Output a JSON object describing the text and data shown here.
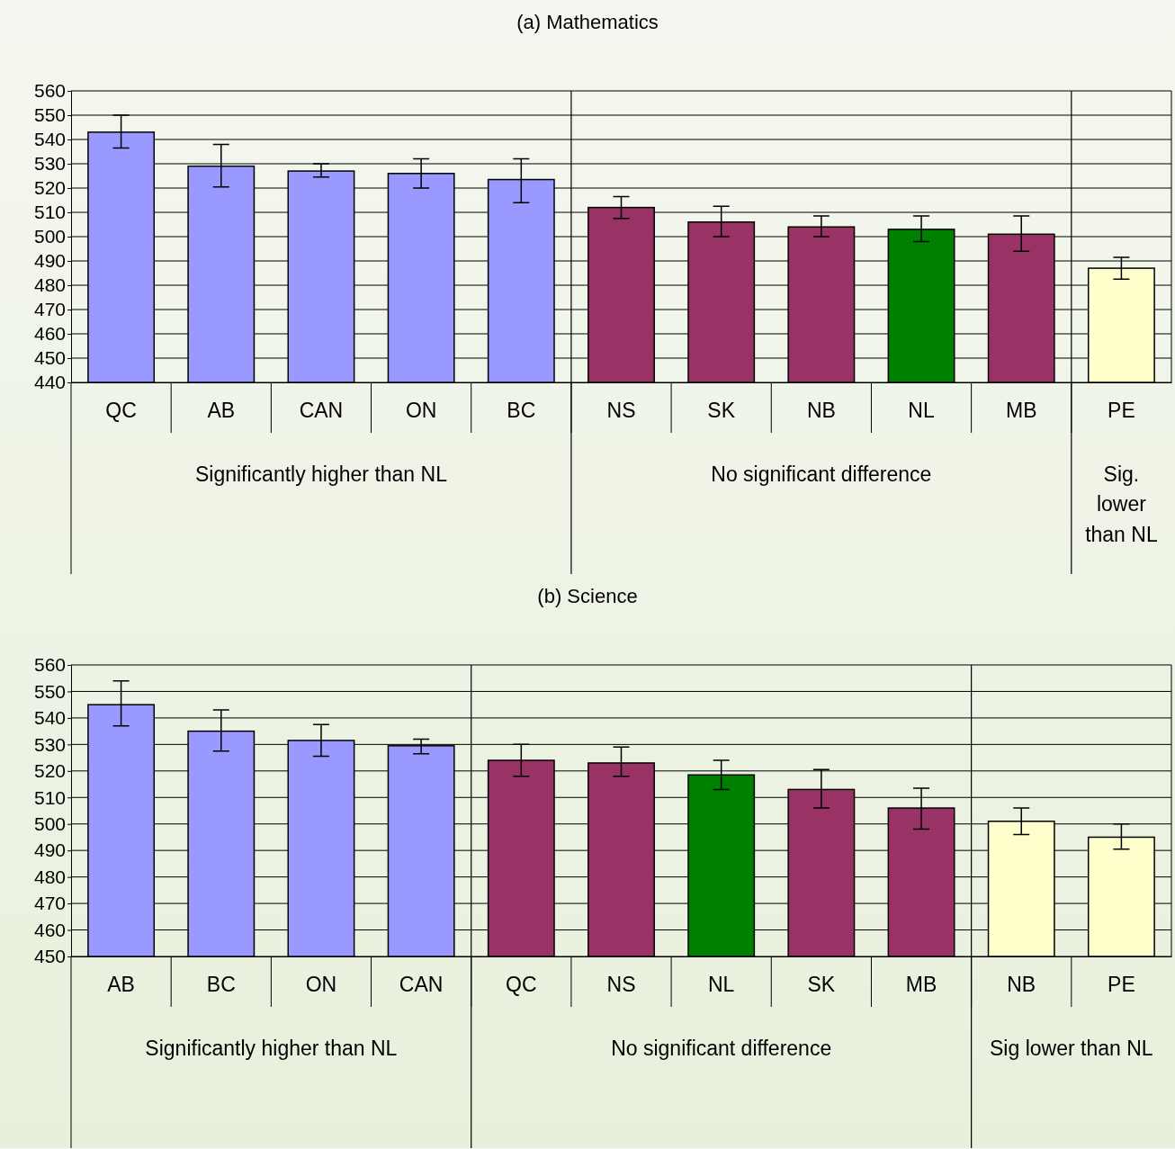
{
  "chart_data": [
    {
      "type": "bar",
      "title": "(a) Mathematics",
      "categories": [
        "QC",
        "AB",
        "CAN",
        "ON",
        "BC",
        "NS",
        "SK",
        "NB",
        "NL",
        "MB",
        "PE"
      ],
      "values": [
        543,
        529,
        527,
        526,
        523.5,
        512,
        506,
        504,
        503,
        501,
        487
      ],
      "colors": [
        "#9999ff",
        "#9999ff",
        "#9999ff",
        "#9999ff",
        "#9999ff",
        "#993366",
        "#993366",
        "#993366",
        "#008000",
        "#993366",
        "#ffffcc"
      ],
      "errors": [
        [
          536.5,
          550
        ],
        [
          520.5,
          538
        ],
        [
          524.5,
          530
        ],
        [
          520,
          532
        ],
        [
          514,
          532
        ],
        [
          507.5,
          516.5
        ],
        [
          500,
          512.5
        ],
        [
          500,
          508.5
        ],
        [
          498,
          508.5
        ],
        [
          494,
          508.5
        ],
        [
          482.5,
          491.5
        ]
      ],
      "ylim": [
        440,
        560
      ],
      "yticks": [
        440,
        450,
        460,
        470,
        480,
        490,
        500,
        510,
        520,
        530,
        540,
        550,
        560
      ],
      "grid": "y",
      "annotations": [
        "Significantly higher than NL",
        "No significant difference",
        "Sig. lower than NL"
      ]
    },
    {
      "type": "bar",
      "title": "(b) Science",
      "categories": [
        "AB",
        "BC",
        "ON",
        "CAN",
        "QC",
        "NS",
        "NL",
        "SK",
        "MB",
        "NB",
        "PE"
      ],
      "values": [
        545,
        535,
        531.5,
        529.5,
        524,
        523,
        518.5,
        513,
        506,
        501,
        495
      ],
      "colors": [
        "#9999ff",
        "#9999ff",
        "#9999ff",
        "#9999ff",
        "#993366",
        "#993366",
        "#008000",
        "#993366",
        "#993366",
        "#ffffcc",
        "#ffffcc"
      ],
      "errors": [
        [
          537,
          554
        ],
        [
          527.5,
          543
        ],
        [
          525.5,
          537.5
        ],
        [
          526.5,
          532
        ],
        [
          518,
          530
        ],
        [
          518,
          529
        ],
        [
          513,
          524
        ],
        [
          506,
          520.5
        ],
        [
          498,
          513.5
        ],
        [
          496,
          506
        ],
        [
          490.5,
          500
        ]
      ],
      "ylim": [
        450,
        560
      ],
      "yticks": [
        450,
        460,
        470,
        480,
        490,
        500,
        510,
        520,
        530,
        540,
        550,
        560
      ],
      "grid": "y",
      "annotations": [
        "Significantly higher than NL",
        "No significant difference",
        "Sig lower than NL"
      ]
    }
  ]
}
